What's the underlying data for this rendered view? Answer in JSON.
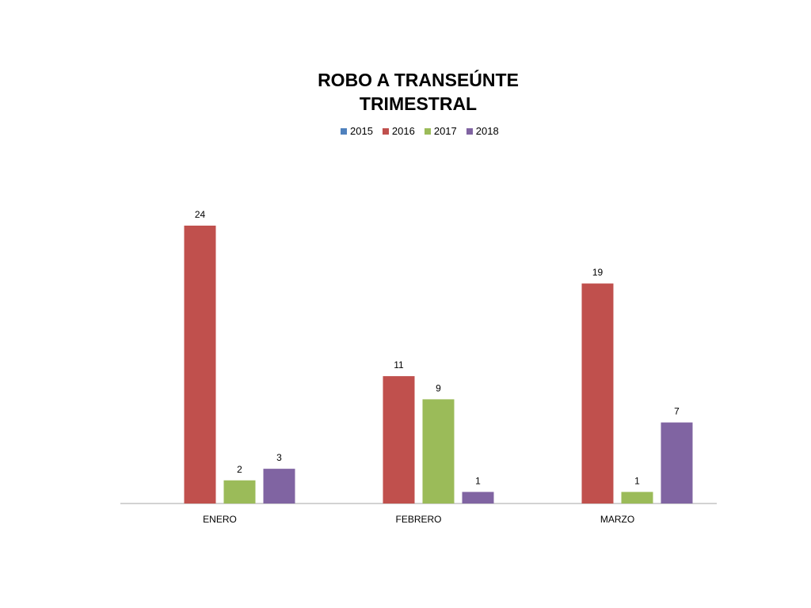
{
  "chart_data": {
    "type": "bar",
    "title": "ROBO A TRANSEÚNTE TRIMESTRAL",
    "title_lines": [
      "ROBO A TRANSEÚNTE",
      "TRIMESTRAL"
    ],
    "categories": [
      "ENERO",
      "FEBRERO",
      "MARZO"
    ],
    "series": [
      {
        "name": "2015",
        "color": "#4F81BD",
        "values": [
          0,
          0,
          0
        ]
      },
      {
        "name": "2016",
        "color": "#C0504D",
        "values": [
          24,
          11,
          19
        ]
      },
      {
        "name": "2017",
        "color": "#9BBB59",
        "values": [
          2,
          9,
          1
        ]
      },
      {
        "name": "2018",
        "color": "#8064A2",
        "values": [
          3,
          1,
          7
        ]
      }
    ],
    "ylim": [
      0,
      24
    ],
    "legend_position": "top",
    "grid": false,
    "xlabel": "",
    "ylabel": ""
  }
}
